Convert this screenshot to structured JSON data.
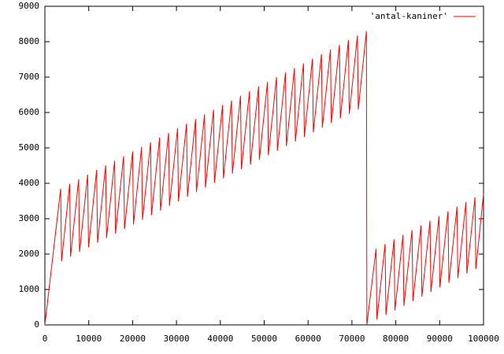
{
  "chart_data": {
    "type": "line",
    "x": [
      0,
      3600,
      3800,
      5650,
      5850,
      7700,
      7900,
      9750,
      9950,
      11800,
      12000,
      13850,
      14050,
      15900,
      16100,
      17950,
      18150,
      20000,
      20200,
      22050,
      22250,
      24100,
      24300,
      26150,
      26350,
      28200,
      28400,
      30250,
      30450,
      32300,
      32500,
      34350,
      34550,
      36400,
      36600,
      38450,
      38650,
      40500,
      40700,
      42550,
      42750,
      44600,
      44800,
      46650,
      46850,
      48700,
      48900,
      50750,
      50950,
      52800,
      53000,
      54850,
      55050,
      56900,
      57100,
      58950,
      59150,
      61000,
      61200,
      63050,
      63250,
      65100,
      65300,
      67150,
      67350,
      69200,
      69400,
      71250,
      71450,
      73300,
      73400,
      75500,
      75700,
      77550,
      77750,
      79600,
      79800,
      81650,
      81850,
      83700,
      83900,
      85750,
      85950,
      87800,
      88000,
      89850,
      90050,
      91900,
      92100,
      93950,
      94150,
      96000,
      96200,
      98050,
      98250,
      100000
    ],
    "series": [
      {
        "name": "'antal-kaniner'",
        "color": "#ff0000",
        "values": [
          0,
          3850,
          1800,
          3981,
          1930,
          4112,
          2060,
          4243,
          2190,
          4374,
          2320,
          4505,
          2450,
          4636,
          2580,
          4767,
          2710,
          4898,
          2840,
          5029,
          2970,
          5160,
          3100,
          5291,
          3230,
          5422,
          3360,
          5553,
          3490,
          5684,
          3620,
          5815,
          3750,
          5946,
          3880,
          6077,
          4010,
          6208,
          4140,
          6339,
          4270,
          6470,
          4400,
          6601,
          4530,
          6732,
          4660,
          6863,
          4790,
          6994,
          4920,
          7125,
          5050,
          7256,
          5180,
          7387,
          5310,
          7518,
          5440,
          7649,
          5570,
          7780,
          5700,
          7911,
          5830,
          8042,
          5960,
          8173,
          6090,
          8300,
          0,
          2150,
          150,
          2282,
          280,
          2414,
          410,
          2546,
          540,
          2678,
          670,
          2810,
          800,
          2942,
          930,
          3074,
          1060,
          3206,
          1190,
          3338,
          1320,
          3470,
          1450,
          3602,
          1580,
          3700
        ]
      }
    ],
    "xlim": [
      0,
      100000
    ],
    "ylim": [
      0,
      9000
    ],
    "xticks": [
      0,
      10000,
      20000,
      30000,
      40000,
      50000,
      60000,
      70000,
      80000,
      90000,
      100000
    ],
    "yticks": [
      0,
      1000,
      2000,
      3000,
      4000,
      5000,
      6000,
      7000,
      8000,
      9000
    ],
    "legend": "top-right"
  }
}
